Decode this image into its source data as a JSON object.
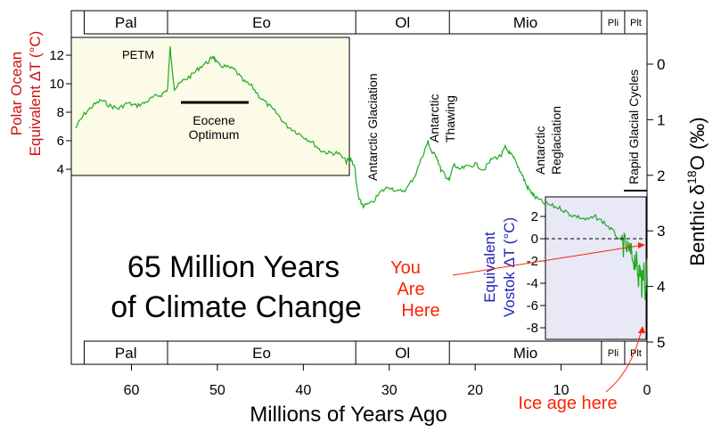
{
  "chart_data": {
    "type": "line",
    "title": "65 Million Years of Climate Change",
    "title_lines": [
      "65 Million Years",
      "of Climate Change"
    ],
    "xlabel": "Millions of Years Ago",
    "xlim": [
      67,
      0
    ],
    "x_ticks": [
      60,
      50,
      40,
      30,
      20,
      10,
      0
    ],
    "ylabel": "Benthic δ 18O (‰)",
    "ylabel_parts": [
      "Benthic δ",
      "18",
      "O (‰)"
    ],
    "ylim": [
      5,
      -0.5
    ],
    "y_inverted": true,
    "y_ticks": [
      0,
      1,
      2,
      3,
      4,
      5
    ],
    "line_color": "#1faa1f",
    "epochs": [
      {
        "label": "Pal",
        "start": 65.5,
        "end": 55.8
      },
      {
        "label": "Eo",
        "start": 55.8,
        "end": 33.9
      },
      {
        "label": "Ol",
        "start": 33.9,
        "end": 23.0
      },
      {
        "label": "Mio",
        "start": 23.0,
        "end": 5.3
      },
      {
        "label": "Pli",
        "start": 5.3,
        "end": 2.6
      },
      {
        "label": "Plt",
        "start": 2.6,
        "end": 0.0
      }
    ],
    "series": [
      {
        "x": [
          66.5,
          65.5,
          64.5,
          63.5,
          62.5,
          61.5,
          60.5,
          59.5,
          58.5,
          57.5,
          56.5,
          55.8,
          55.5,
          55,
          54,
          53,
          52,
          51,
          50.5,
          50,
          49,
          48,
          47,
          46,
          45,
          44,
          43,
          42,
          41,
          40,
          39,
          38,
          37,
          36,
          35,
          34.5,
          34,
          33.8,
          33.5,
          33,
          32,
          31,
          30,
          29,
          28,
          27,
          26,
          25.5,
          25,
          24.5,
          24,
          23.5,
          23,
          22.5,
          22,
          21,
          20,
          19,
          18,
          17,
          16.5,
          16,
          15.5,
          15,
          14.5,
          14,
          13.5,
          13,
          12,
          11,
          10,
          9,
          8,
          7,
          6,
          5,
          4,
          3,
          2.5,
          2,
          1.5,
          1.2,
          1,
          0.8,
          0.6,
          0.4,
          0.2,
          0
        ],
        "y": [
          1.15,
          0.9,
          0.75,
          0.65,
          0.75,
          0.8,
          0.7,
          0.75,
          0.7,
          0.6,
          0.55,
          0.45,
          -0.3,
          0.45,
          0.3,
          0.2,
          0.05,
          -0.05,
          -0.15,
          0.0,
          0.05,
          0.1,
          0.3,
          0.4,
          0.6,
          0.75,
          0.9,
          1.1,
          1.2,
          1.3,
          1.4,
          1.55,
          1.6,
          1.6,
          1.75,
          1.7,
          1.85,
          2.2,
          2.45,
          2.55,
          2.5,
          2.3,
          2.2,
          2.3,
          2.25,
          2.0,
          1.6,
          1.4,
          1.6,
          1.65,
          1.9,
          2.0,
          2.1,
          1.8,
          1.9,
          1.85,
          1.8,
          1.9,
          1.7,
          1.65,
          1.5,
          1.6,
          1.7,
          1.85,
          2.0,
          2.2,
          2.3,
          2.4,
          2.5,
          2.55,
          2.6,
          2.7,
          2.75,
          2.8,
          2.75,
          2.85,
          3.0,
          3.2,
          3.3,
          3.4,
          3.5,
          3.6,
          3.8,
          3.7,
          4.0,
          3.6,
          4.2,
          3.5
        ]
      }
    ],
    "petm_label": "PETM",
    "eocene_label": [
      "Eocene",
      "Optimum"
    ],
    "events": [
      {
        "lines": [
          "Antarctic Glaciation"
        ],
        "x": 33.5
      },
      {
        "lines": [
          "Antarctic",
          "Thawing"
        ],
        "x": 24.8
      },
      {
        "lines": [
          "Antarctic",
          "Reglaciation"
        ],
        "x": 13.5
      },
      {
        "lines": [
          "Rapid Glacial Cycles"
        ],
        "x": 2.5
      }
    ],
    "polar_inset": {
      "ylabel_lines": [
        "Polar Ocean",
        "Equivalent ΔT (°C)"
      ],
      "ylabel_color": "#cc1111",
      "background": "#fbfbe8",
      "ticks": [
        4,
        6,
        8,
        10,
        12
      ]
    },
    "vostok_inset": {
      "ylabel_lines": [
        "Equivalent",
        "Vostok ΔT (°C)"
      ],
      "ylabel_color": "#2222bb",
      "background": "#e8e8f7",
      "ticks": [
        2,
        0,
        -2,
        -4,
        -6,
        -8
      ]
    },
    "you_are_here": [
      "You",
      "Are",
      "Here"
    ],
    "ice_age_label": "Ice age here",
    "annotation_color": "#ff2200"
  }
}
